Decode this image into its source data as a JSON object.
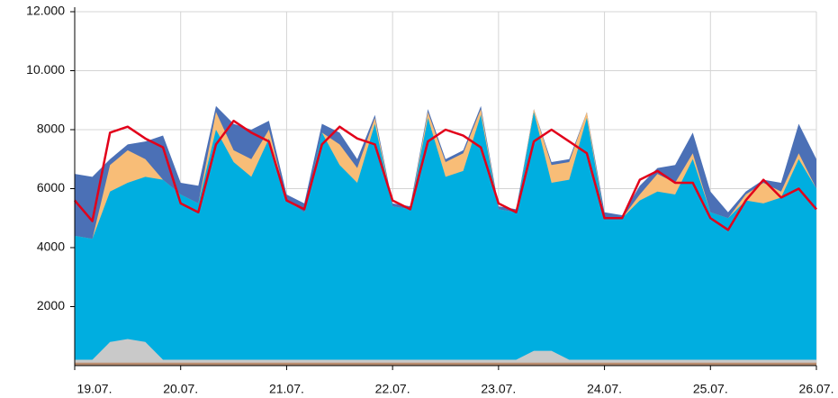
{
  "chart_data": {
    "type": "area",
    "stacked": true,
    "grid": true,
    "x": [
      0,
      4,
      8,
      12,
      16,
      20,
      24,
      28,
      32,
      36,
      40,
      44,
      48,
      52,
      56,
      60,
      64,
      68,
      72,
      76,
      80,
      84,
      88,
      92,
      96,
      100,
      104,
      108,
      112,
      116,
      120,
      124,
      128,
      132,
      136,
      140,
      144,
      148,
      152,
      156,
      160,
      164,
      168
    ],
    "xlim": [
      0,
      168
    ],
    "xticks": [
      {
        "value": 0,
        "label": "19.07."
      },
      {
        "value": 24,
        "label": "20.07."
      },
      {
        "value": 48,
        "label": "21.07."
      },
      {
        "value": 72,
        "label": "22.07."
      },
      {
        "value": 96,
        "label": "23.07."
      },
      {
        "value": 120,
        "label": "24.07."
      },
      {
        "value": 144,
        "label": "25.07."
      },
      {
        "value": 168,
        "label": "26.07."
      }
    ],
    "ylim": [
      0,
      12000
    ],
    "yticks": [
      2000,
      4000,
      6000,
      8000,
      {
        "value": 10000,
        "label": "10.000"
      },
      {
        "value": 12000,
        "label": "12.000"
      }
    ],
    "series": [
      {
        "color": "#b98d70",
        "values": [
          100,
          100,
          100,
          100,
          100,
          100,
          100,
          100,
          100,
          100,
          100,
          100,
          100,
          100,
          100,
          100,
          100,
          100,
          100,
          100,
          100,
          100,
          100,
          100,
          100,
          100,
          100,
          100,
          100,
          100,
          100,
          100,
          100,
          100,
          100,
          100,
          100,
          100,
          100,
          100,
          100,
          100,
          100
        ]
      },
      {
        "color": "#c9c9c9",
        "values": [
          100,
          100,
          700,
          800,
          700,
          100,
          100,
          100,
          100,
          100,
          100,
          100,
          100,
          100,
          100,
          100,
          100,
          100,
          100,
          100,
          100,
          100,
          100,
          100,
          100,
          100,
          400,
          400,
          100,
          100,
          100,
          100,
          100,
          100,
          100,
          100,
          100,
          100,
          100,
          100,
          100,
          100,
          100
        ]
      },
      {
        "color": "#00aee0",
        "values": [
          4200,
          4100,
          5100,
          5300,
          5600,
          6100,
          5600,
          5300,
          7800,
          6700,
          6200,
          7500,
          5400,
          5000,
          7700,
          6600,
          6000,
          8000,
          5200,
          5100,
          8200,
          6200,
          6400,
          8300,
          5100,
          5000,
          8100,
          5700,
          6100,
          8200,
          4800,
          4800,
          5400,
          5700,
          5600,
          6800,
          5000,
          4800,
          5400,
          5300,
          5500,
          6800,
          5800
        ]
      },
      {
        "color": "#f8bd77",
        "values": [
          0,
          0,
          900,
          1100,
          600,
          0,
          0,
          0,
          600,
          400,
          600,
          300,
          0,
          0,
          0,
          700,
          500,
          200,
          0,
          0,
          200,
          500,
          600,
          200,
          0,
          0,
          100,
          600,
          600,
          200,
          0,
          0,
          200,
          600,
          400,
          200,
          0,
          0,
          200,
          700,
          200,
          200,
          0
        ]
      },
      {
        "color": "#4b70b6",
        "values": [
          2100,
          2100,
          200,
          200,
          600,
          1500,
          400,
          600,
          200,
          900,
          1000,
          300,
          200,
          300,
          300,
          400,
          300,
          100,
          100,
          100,
          100,
          100,
          100,
          100,
          100,
          100,
          0,
          100,
          100,
          0,
          200,
          100,
          300,
          200,
          600,
          700,
          700,
          200,
          100,
          100,
          300,
          1000,
          1000
        ]
      },
      {
        "type": "line",
        "color": "#e2001a",
        "values": [
          5600,
          4900,
          7900,
          8100,
          7700,
          7400,
          5500,
          5200,
          7500,
          8300,
          7900,
          7600,
          5600,
          5300,
          7500,
          8100,
          7700,
          7500,
          5600,
          5300,
          7600,
          8000,
          7800,
          7400,
          5500,
          5200,
          7600,
          8000,
          7600,
          7200,
          5000,
          5000,
          6300,
          6600,
          6200,
          6200,
          5000,
          4600,
          5600,
          6300,
          5700,
          6000,
          5300
        ]
      }
    ]
  }
}
